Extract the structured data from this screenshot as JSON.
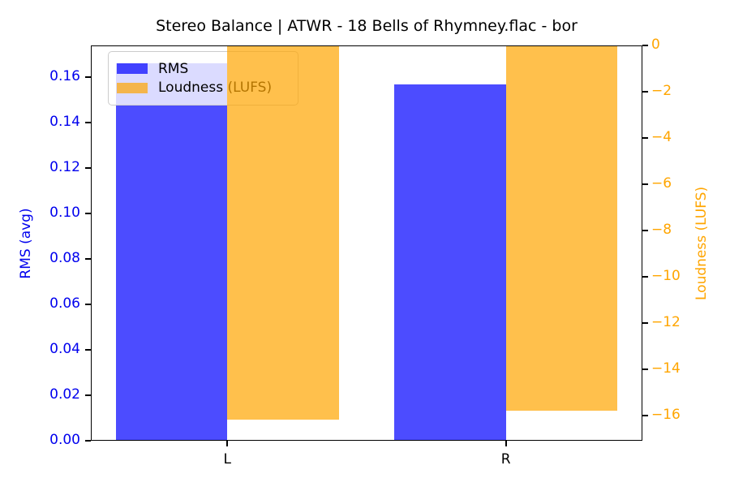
{
  "title": "Stereo Balance | ATWR - 18 Bells of Rhymney.flac - bor",
  "chart_data": {
    "type": "bar",
    "categories": [
      "L",
      "R"
    ],
    "series": [
      {
        "name": "RMS",
        "axis": "left",
        "color": "rgba(0,0,255,0.7)",
        "values": [
          0.166,
          0.157
        ]
      },
      {
        "name": "Loudness (LUFS)",
        "axis": "right",
        "color": "rgba(255,165,0,0.7)",
        "values": [
          -16.2,
          -15.8
        ]
      }
    ],
    "left_axis": {
      "label": "RMS (avg)",
      "color": "#0000ee",
      "lim": [
        0,
        0.174
      ],
      "tick_values": [
        0,
        0.02,
        0.04,
        0.06,
        0.08,
        0.1,
        0.12,
        0.14,
        0.16
      ],
      "tick_labels": [
        "0.00",
        "0.02",
        "0.04",
        "0.06",
        "0.08",
        "0.10",
        "0.12",
        "0.14",
        "0.16"
      ]
    },
    "right_axis": {
      "label": "Loudness (LUFS)",
      "color": "#ffa500",
      "lim": [
        -17.1,
        0
      ],
      "tick_values": [
        0,
        -2,
        -4,
        -6,
        -8,
        -10,
        -12,
        -14,
        -16
      ],
      "tick_labels": [
        "0",
        "−2",
        "−4",
        "−6",
        "−8",
        "−10",
        "−12",
        "−14",
        "−16"
      ]
    },
    "legend": {
      "position": "upper left",
      "entries": [
        "RMS",
        "Loudness (LUFS)"
      ]
    },
    "bar_width": 0.4,
    "xlim": [
      -0.49,
      1.49
    ],
    "grid": false
  }
}
